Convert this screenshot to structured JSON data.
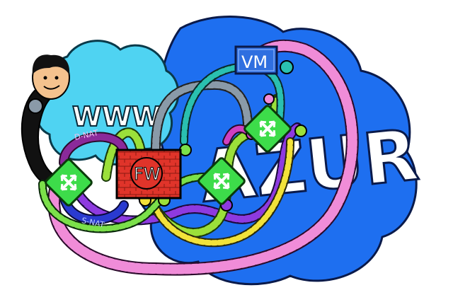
{
  "labels": {
    "www": "WWW",
    "azur": "AZUR",
    "vm": "VM",
    "fw": "FW",
    "dnat": "D-NAT",
    "snat": "S-NAT"
  },
  "colors": {
    "azure_cloud": "#1E6FF0",
    "www_cloud": "#4FD3F2",
    "pink_cable": "#F08CD8",
    "green_router": "#3DDC4A",
    "firewall": "#E0342A",
    "vm_box": "#2F6FE0"
  },
  "icons": [
    "person-icon",
    "router-icon",
    "firewall-icon",
    "vm-icon"
  ]
}
